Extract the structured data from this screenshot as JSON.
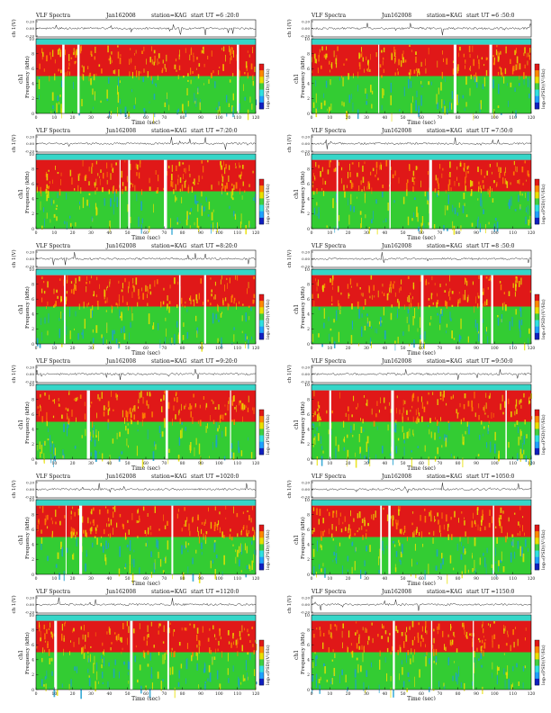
{
  "figure": {
    "panels": [
      {
        "title": "VLF Spectra",
        "date": "Jan162008",
        "station": "station=KAG",
        "start": "start  UT  =6 :20:0"
      },
      {
        "title": "VLF Spectra",
        "date": "Jun162008",
        "station": "station=KAG",
        "start": "start  UT  =6 :50:0"
      },
      {
        "title": "VLF Spectra",
        "date": "Jun162008",
        "station": "station=KAG",
        "start": "start  UT  =7:20:0"
      },
      {
        "title": "VLF Spectra",
        "date": "Jun162008",
        "station": "station=KAG",
        "start": "start  UT  =7:50:0"
      },
      {
        "title": "VLF Spectra",
        "date": "Jun162008",
        "station": "station=KAG",
        "start": "start  UT  =8:20:0"
      },
      {
        "title": "VLF Spectra",
        "date": "Jun162008",
        "station": "station=KAG",
        "start": "start  UT  =8 :50:0"
      },
      {
        "title": "VLF Spectra",
        "date": "Jun162008",
        "station": "station=KAG",
        "start": "start  UT  =9:20:0"
      },
      {
        "title": "VLF Spectra",
        "date": "Jun162008",
        "station": "station=KAG",
        "start": "start  UT  =9:50:0"
      },
      {
        "title": "VLF Spectra",
        "date": "Jun162008",
        "station": "station=KAG",
        "start": "start  UT  =1020:0"
      },
      {
        "title": "VLF Spectra",
        "date": "Jun162008",
        "station": "station=KAG",
        "start": "start  UT  =1050:0"
      },
      {
        "title": "VLF Spectra",
        "date": "Jun162008",
        "station": "station=KAG",
        "start": "start  UT  =1120:0"
      },
      {
        "title": "VLF Spectra",
        "date": "Jun162008",
        "station": "station=KAG",
        "start": "start  UT  =1150:0"
      }
    ],
    "labels": {
      "ch_ylabel": "ch 1(V)",
      "freq_ylabel": "Frequency (kHz)",
      "freq_ylabel_prefix": "ch1",
      "xlabel": "Time  (sec)",
      "colorbar_label": "log₁₀(PSD)(V²/Hz)"
    },
    "colors": {
      "background": "#ffffff",
      "axis": "#111111",
      "spectrogram_low": "#33cc33",
      "spectrogram_mid": "#e8e000",
      "spectrogram_high": "#e01818",
      "top_band": "#35d6c8",
      "colorbar": [
        "#1020c0",
        "#20a0ff",
        "#30e0e0",
        "#40d040",
        "#e8e000",
        "#ff8800",
        "#e01818"
      ]
    }
  },
  "chart_data": {
    "type": "heatmap",
    "panel_count": 12,
    "layout": "2 columns x 6 rows",
    "x_axis": {
      "label": "Time  (sec)",
      "range": [
        0,
        120
      ],
      "ticks": [
        0,
        10,
        20,
        30,
        40,
        50,
        60,
        70,
        80,
        90,
        100,
        110,
        120
      ]
    },
    "y_axis_spectrogram": {
      "label": "Frequency (kHz)",
      "range": [
        0,
        10
      ],
      "ticks": [
        0,
        2,
        4,
        6,
        8,
        10
      ]
    },
    "y_axis_waveform": {
      "label": "ch 1(V)",
      "range": [
        -0.2,
        0.2
      ],
      "ticks": [
        "0.20",
        "0.00",
        "-0.20"
      ]
    },
    "colorbar": {
      "label": "log₁₀(PSD)(V²/Hz)"
    },
    "bands": [
      {
        "freq_range": [
          9.2,
          10
        ],
        "level": "cyan band"
      },
      {
        "freq_range": [
          5,
          9.2
        ],
        "level": "high (red/orange)"
      },
      {
        "freq_range": [
          0,
          5
        ],
        "level": "low (green/yellow)"
      }
    ]
  }
}
